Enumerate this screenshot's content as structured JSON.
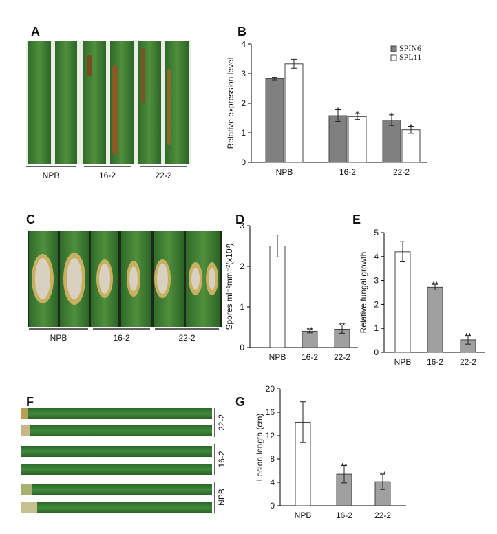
{
  "photos": [
    {
      "panel": "A",
      "labels": [
        "NPB",
        "16-2",
        "22-2"
      ]
    },
    {
      "panel": "C",
      "labels": [
        "NPB",
        "16-2",
        "22-2"
      ]
    },
    {
      "panel": "F",
      "labels": [
        "22-2",
        "16-2",
        "NPB"
      ]
    }
  ],
  "chart_data": [
    {
      "type": "bar",
      "panel": "B",
      "ylabel": "Relative expression level",
      "categories": [
        "NPB",
        "16-2",
        "22-2"
      ],
      "ylim": [
        0,
        4
      ],
      "yticks": [
        0,
        1,
        2,
        3,
        4
      ],
      "series": [
        {
          "name": "SPIN6",
          "color": "#808080",
          "values": [
            2.83,
            1.58,
            1.43
          ],
          "errors": [
            0.04,
            0.2,
            0.18
          ],
          "annotations": [
            null,
            "*",
            "*"
          ]
        },
        {
          "name": "SPL11",
          "color": "#ffffff",
          "values": [
            3.33,
            1.55,
            1.1
          ],
          "errors": [
            0.15,
            0.1,
            0.12
          ],
          "annotations": [
            null,
            "*",
            "*"
          ]
        }
      ]
    },
    {
      "type": "bar",
      "panel": "D",
      "ylabel": "Spores ml⁻¹mm⁻²(x10³)",
      "categories": [
        "NPB",
        "16-2",
        "22-2"
      ],
      "ylim": [
        0,
        3
      ],
      "yticks": [
        0,
        1,
        2,
        3
      ],
      "series": [
        {
          "colors": [
            "#ffffff",
            "#a0a0a0",
            "#a0a0a0"
          ],
          "values": [
            2.5,
            0.4,
            0.45
          ],
          "errors": [
            0.27,
            0.04,
            0.1
          ],
          "annotations": [
            null,
            "**",
            "**"
          ]
        }
      ]
    },
    {
      "type": "bar",
      "panel": "E",
      "ylabel": "Relative fungal growth",
      "categories": [
        "NPB",
        "16-2",
        "22-2"
      ],
      "ylim": [
        0,
        5
      ],
      "yticks": [
        0,
        1,
        2,
        3,
        4,
        5
      ],
      "series": [
        {
          "colors": [
            "#ffffff",
            "#a0a0a0",
            "#a0a0a0"
          ],
          "values": [
            4.2,
            2.72,
            0.52
          ],
          "errors": [
            0.42,
            0.12,
            0.18
          ],
          "annotations": [
            null,
            "**",
            "**"
          ]
        }
      ]
    },
    {
      "type": "bar",
      "panel": "G",
      "ylabel": "Lesion length (cm)",
      "categories": [
        "NPB",
        "16-2",
        "22-2"
      ],
      "ylim": [
        0,
        20
      ],
      "yticks": [
        0,
        4,
        8,
        12,
        16,
        20
      ],
      "series": [
        {
          "colors": [
            "#ffffff",
            "#a0a0a0",
            "#a0a0a0"
          ],
          "values": [
            14.3,
            5.4,
            4.1
          ],
          "errors": [
            3.5,
            1.5,
            1.3
          ],
          "annotations": [
            null,
            "**",
            "**"
          ]
        }
      ]
    }
  ]
}
